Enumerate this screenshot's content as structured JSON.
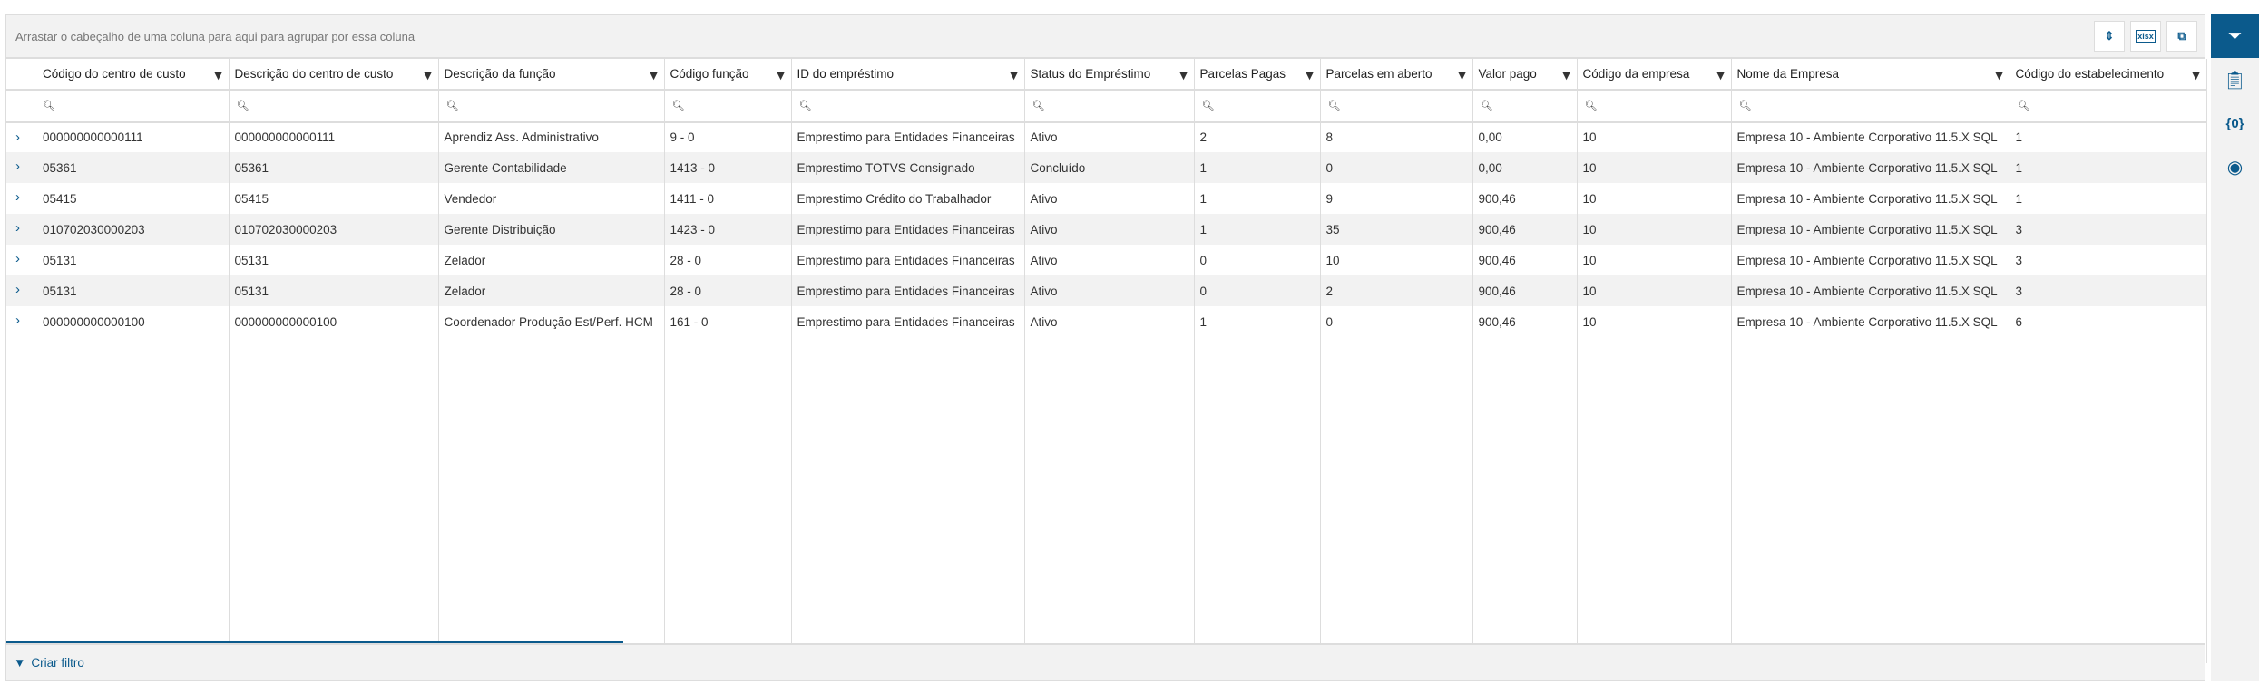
{
  "group_hint": "Arrastar o cabeçalho de uma coluna para aqui para agrupar por essa coluna",
  "toolbar": {
    "sort_icon": "⇕",
    "xlsx_label": "xlsx",
    "export_icon": "copy-icon"
  },
  "columns": [
    "Código do centro de custo",
    "Descrição do centro de custo",
    "Descrição da função",
    "Código função",
    "ID do empréstimo",
    "Status do Empréstimo",
    "Parcelas Pagas",
    "Parcelas em aberto",
    "Valor pago",
    "Código da empresa",
    "Nome da Empresa",
    "Código do estabelecimento"
  ],
  "rows": [
    [
      "000000000000111",
      "000000000000111",
      "Aprendiz Ass. Administrativo",
      "9 - 0",
      "Emprestimo para Entidades Financeiras",
      "Ativo",
      "2",
      "8",
      "0,00",
      "10",
      "Empresa 10 - Ambiente Corporativo 11.5.X SQL",
      "1"
    ],
    [
      "05361",
      "05361",
      "Gerente Contabilidade",
      "1413 - 0",
      "Emprestimo TOTVS Consignado",
      "Concluído",
      "1",
      "0",
      "0,00",
      "10",
      "Empresa 10 - Ambiente Corporativo 11.5.X SQL",
      "1"
    ],
    [
      "05415",
      "05415",
      "Vendedor",
      "1411 - 0",
      "Emprestimo Crédito do Trabalhador",
      "Ativo",
      "1",
      "9",
      "900,46",
      "10",
      "Empresa 10 - Ambiente Corporativo 11.5.X SQL",
      "1"
    ],
    [
      "010702030000203",
      "010702030000203",
      "Gerente Distribuição",
      "1423 - 0",
      "Emprestimo para Entidades Financeiras",
      "Ativo",
      "1",
      "35",
      "900,46",
      "10",
      "Empresa 10 - Ambiente Corporativo 11.5.X SQL",
      "3"
    ],
    [
      "05131",
      "05131",
      "Zelador",
      "28 - 0",
      "Emprestimo para Entidades Financeiras",
      "Ativo",
      "0",
      "10",
      "900,46",
      "10",
      "Empresa 10 - Ambiente Corporativo 11.5.X SQL",
      "3"
    ],
    [
      "05131",
      "05131",
      "Zelador",
      "28 - 0",
      "Emprestimo para Entidades Financeiras",
      "Ativo",
      "0",
      "2",
      "900,46",
      "10",
      "Empresa 10 - Ambiente Corporativo 11.5.X SQL",
      "3"
    ],
    [
      "000000000000100",
      "000000000000100",
      "Coordenador Produção Est/Perf. HCM",
      "161 - 0",
      "Emprestimo para Entidades Financeiras",
      "Ativo",
      "1",
      "0",
      "900,46",
      "10",
      "Empresa 10 - Ambiente Corporativo 11.5.X SQL",
      "6"
    ]
  ],
  "footer": {
    "create_filter": "Criar filtro"
  },
  "sidebar": [
    "filter-icon",
    "clipboard-icon",
    "variables-icon",
    "eye-icon"
  ],
  "colors": {
    "accent": "#0b5a8c",
    "stripe": "#f2f2f2"
  }
}
